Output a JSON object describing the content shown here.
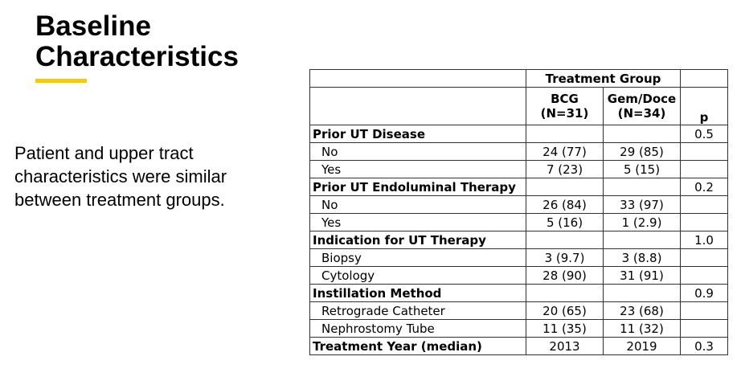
{
  "header": {
    "title": "Baseline Characteristics"
  },
  "body_text": "Patient and upper tract characteristics were similar between treatment groups.",
  "table": {
    "group_header": "Treatment Group",
    "columns": [
      {
        "name": "BCG",
        "n": "(N=31)"
      },
      {
        "name": "Gem/Doce",
        "n": "(N=34)"
      }
    ],
    "p_header": "p",
    "sections": [
      {
        "label": "Prior UT Disease",
        "p": "0.5",
        "items": [
          {
            "label": "No",
            "values": [
              "24 (77)",
              "29 (85)"
            ]
          },
          {
            "label": "Yes",
            "values": [
              "7 (23)",
              "5 (15)"
            ]
          }
        ]
      },
      {
        "label": "Prior UT Endoluminal Therapy",
        "p": "0.2",
        "items": [
          {
            "label": "No",
            "values": [
              "26 (84)",
              "33 (97)"
            ]
          },
          {
            "label": "Yes",
            "values": [
              "5 (16)",
              "1 (2.9)"
            ]
          }
        ]
      },
      {
        "label": "Indication for UT Therapy",
        "p": "1.0",
        "items": [
          {
            "label": "Biopsy",
            "values": [
              "3 (9.7)",
              "3 (8.8)"
            ]
          },
          {
            "label": "Cytology",
            "values": [
              "28 (90)",
              "31 (91)"
            ]
          }
        ]
      },
      {
        "label": "Instillation Method",
        "p": "0.9",
        "items": [
          {
            "label": "Retrograde Catheter",
            "values": [
              "20 (65)",
              "23 (68)"
            ]
          },
          {
            "label": "Nephrostomy Tube",
            "values": [
              "11 (35)",
              "11 (32)"
            ]
          }
        ]
      },
      {
        "label": "Treatment Year (median)",
        "p": "0.3",
        "values": [
          "2013",
          "2019"
        ]
      }
    ]
  }
}
